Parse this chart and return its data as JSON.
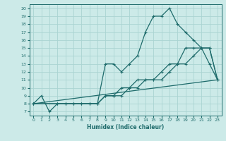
{
  "xlabel": "Humidex (Indice chaleur)",
  "bg_color": "#cceae8",
  "grid_color": "#aad4d2",
  "line_color": "#1e6b6b",
  "xlim": [
    -0.5,
    23.5
  ],
  "ylim": [
    6.5,
    20.5
  ],
  "xticks": [
    0,
    1,
    2,
    3,
    4,
    5,
    6,
    7,
    8,
    9,
    10,
    11,
    12,
    13,
    14,
    15,
    16,
    17,
    18,
    19,
    20,
    21,
    22,
    23
  ],
  "yticks": [
    7,
    8,
    9,
    10,
    11,
    12,
    13,
    14,
    15,
    16,
    17,
    18,
    19,
    20
  ],
  "line1_x": [
    0,
    1,
    2,
    3,
    4,
    5,
    6,
    7,
    8,
    9,
    10,
    11,
    12,
    13,
    14,
    15,
    16,
    17,
    18,
    19,
    20,
    21,
    22,
    23
  ],
  "line1_y": [
    8,
    9,
    7,
    8,
    8,
    8,
    8,
    8,
    8,
    13,
    13,
    12,
    13,
    14,
    17,
    19,
    19,
    20,
    18,
    17,
    16,
    15,
    13,
    11
  ],
  "line2_x": [
    0,
    3,
    4,
    5,
    6,
    7,
    8,
    9,
    10,
    11,
    12,
    13,
    14,
    15,
    16,
    17,
    18,
    19,
    20,
    21,
    22,
    23
  ],
  "line2_y": [
    8,
    8,
    8,
    8,
    8,
    8,
    8,
    9,
    9,
    9,
    10,
    10,
    11,
    11,
    12,
    13,
    13,
    15,
    15,
    15,
    15,
    11
  ],
  "line3_x": [
    0,
    23
  ],
  "line3_y": [
    8,
    11
  ],
  "line4_x": [
    0,
    8,
    9,
    10,
    11,
    12,
    13,
    14,
    15,
    16,
    17,
    18,
    19,
    20,
    21,
    22,
    23
  ],
  "line4_y": [
    8,
    8,
    9,
    9,
    10,
    10,
    11,
    11,
    11,
    11,
    12,
    13,
    13,
    14,
    15,
    15,
    11
  ]
}
